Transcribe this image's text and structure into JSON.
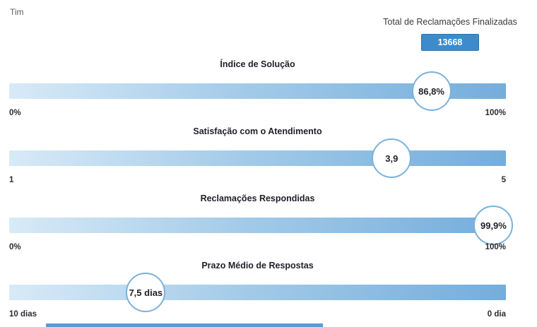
{
  "header": {
    "company_label": "Tim",
    "total_label": "Total de Reclamações Finalizadas",
    "total_value": "13668"
  },
  "gauges": [
    {
      "title": "Índice de Solução",
      "value_label": "86,8%",
      "left_label": "0%",
      "right_label": "100%",
      "marker_percent": 85
    },
    {
      "title": "Satisfação com o Atendimento",
      "value_label": "3,9",
      "left_label": "1",
      "right_label": "5",
      "marker_percent": 77
    },
    {
      "title": "Reclamações Respondidas",
      "value_label": "99,9%",
      "left_label": "0%",
      "right_label": "100%",
      "marker_percent": 97.5
    },
    {
      "title": "Prazo Médio de Respostas",
      "value_label": "7,5 dias",
      "left_label": "10 dias",
      "right_label": "0 dia",
      "marker_percent": 27.5
    }
  ],
  "colors": {
    "bar_gradient_start": "#d8eaf7",
    "bar_gradient_end": "#74addc",
    "bubble_border": "#7ab2dc",
    "total_box_bg": "#3d8bca",
    "total_box_border": "#2e74ad",
    "accent_strip": "#5b9bd5"
  },
  "chart_data": [
    {
      "type": "bar",
      "subtype": "linear-gauge",
      "title": "Índice de Solução",
      "value": 86.8,
      "unit": "%",
      "axis_range": [
        0,
        100
      ],
      "value_label": "86,8%",
      "tick_labels": [
        "0%",
        "100%"
      ]
    },
    {
      "type": "bar",
      "subtype": "linear-gauge",
      "title": "Satisfação com o Atendimento",
      "value": 3.9,
      "unit": "",
      "axis_range": [
        1,
        5
      ],
      "value_label": "3,9",
      "tick_labels": [
        "1",
        "5"
      ]
    },
    {
      "type": "bar",
      "subtype": "linear-gauge",
      "title": "Reclamações Respondidas",
      "value": 99.9,
      "unit": "%",
      "axis_range": [
        0,
        100
      ],
      "value_label": "99,9%",
      "tick_labels": [
        "0%",
        "100%"
      ]
    },
    {
      "type": "bar",
      "subtype": "linear-gauge",
      "title": "Prazo Médio de Respostas",
      "value": 7.5,
      "unit": "dias",
      "axis_range": [
        10,
        0
      ],
      "value_label": "7,5 dias",
      "tick_labels": [
        "10 dias",
        "0 dia"
      ]
    }
  ]
}
